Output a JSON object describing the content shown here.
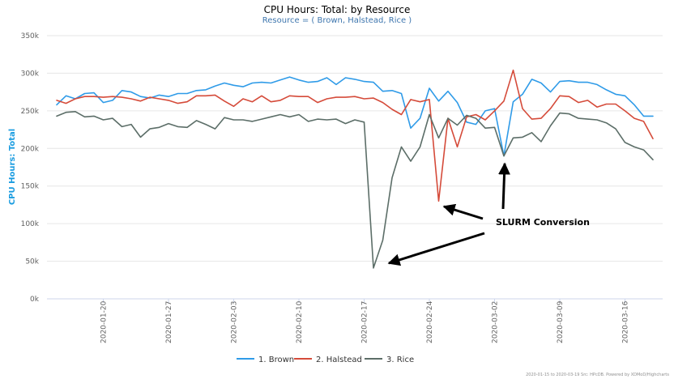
{
  "chart_data": {
    "type": "line",
    "title": "CPU Hours: Total: by Resource",
    "subtitle": "Resource = ( Brown, Halstead, Rice )",
    "ylabel": "CPU Hours: Total",
    "xlabel": "",
    "ylim": [
      0,
      350000
    ],
    "yticks": [
      0,
      50000,
      100000,
      150000,
      200000,
      250000,
      300000,
      350000
    ],
    "ytick_labels": [
      "0k",
      "50k",
      "100k",
      "150k",
      "200k",
      "250k",
      "300k",
      "350k"
    ],
    "xrange": [
      "2020-01-15",
      "2020-03-19"
    ],
    "xticks": [
      "2020-01-20",
      "2020-01-27",
      "2020-02-03",
      "2020-02-10",
      "2020-02-17",
      "2020-02-24",
      "2020-03-02",
      "2020-03-09",
      "2020-03-16"
    ],
    "grid": "horizontal",
    "legend_position": "bottom",
    "x": [
      "2020-01-15",
      "2020-01-16",
      "2020-01-17",
      "2020-01-18",
      "2020-01-19",
      "2020-01-20",
      "2020-01-21",
      "2020-01-22",
      "2020-01-23",
      "2020-01-24",
      "2020-01-25",
      "2020-01-26",
      "2020-01-27",
      "2020-01-28",
      "2020-01-29",
      "2020-01-30",
      "2020-01-31",
      "2020-02-01",
      "2020-02-02",
      "2020-02-03",
      "2020-02-04",
      "2020-02-05",
      "2020-02-06",
      "2020-02-07",
      "2020-02-08",
      "2020-02-09",
      "2020-02-10",
      "2020-02-11",
      "2020-02-12",
      "2020-02-13",
      "2020-02-14",
      "2020-02-15",
      "2020-02-16",
      "2020-02-17",
      "2020-02-18",
      "2020-02-19",
      "2020-02-20",
      "2020-02-21",
      "2020-02-22",
      "2020-02-23",
      "2020-02-24",
      "2020-02-25",
      "2020-02-26",
      "2020-02-27",
      "2020-02-28",
      "2020-02-29",
      "2020-03-01",
      "2020-03-02",
      "2020-03-03",
      "2020-03-04",
      "2020-03-05",
      "2020-03-06",
      "2020-03-07",
      "2020-03-08",
      "2020-03-09",
      "2020-03-10",
      "2020-03-11",
      "2020-03-12",
      "2020-03-13",
      "2020-03-14",
      "2020-03-15",
      "2020-03-16",
      "2020-03-17",
      "2020-03-18",
      "2020-03-19"
    ],
    "series": [
      {
        "name": "1. Brown",
        "color": "#2f9be8",
        "values": [
          258000,
          270000,
          266000,
          273000,
          274000,
          261000,
          264000,
          277000,
          275000,
          269000,
          267000,
          271000,
          269000,
          273000,
          273000,
          277000,
          278000,
          283000,
          287000,
          284000,
          282000,
          287000,
          288000,
          287000,
          291000,
          295000,
          291000,
          288000,
          289000,
          294000,
          285000,
          294000,
          292000,
          289000,
          288000,
          276000,
          277000,
          273000,
          227000,
          240000,
          280000,
          263000,
          276000,
          261000,
          235000,
          232000,
          250000,
          253000,
          190000,
          262000,
          272000,
          292000,
          287000,
          275000,
          289000,
          290000,
          288000,
          288000,
          285000,
          278000,
          272000,
          270000,
          258000,
          243000,
          243000
        ]
      },
      {
        "name": "2. Halstead",
        "color": "#d54b3a",
        "values": [
          264000,
          260000,
          266000,
          269000,
          269000,
          268000,
          269000,
          268000,
          266000,
          263000,
          268000,
          266000,
          264000,
          260000,
          262000,
          270000,
          270000,
          271000,
          263000,
          256000,
          266000,
          262000,
          270000,
          262000,
          264000,
          270000,
          269000,
          269000,
          261000,
          266000,
          268000,
          268000,
          269000,
          266000,
          267000,
          261000,
          252000,
          245000,
          265000,
          262000,
          265000,
          130000,
          240000,
          202000,
          242000,
          245000,
          238000,
          250000,
          263000,
          304000,
          253000,
          239000,
          240000,
          253000,
          270000,
          269000,
          261000,
          264000,
          255000,
          259000,
          259000,
          250000,
          240000,
          236000,
          213000
        ]
      },
      {
        "name": "3. Rice",
        "color": "#5c6e68",
        "values": [
          243000,
          248000,
          249000,
          242000,
          243000,
          238000,
          240000,
          229000,
          232000,
          215000,
          226000,
          228000,
          233000,
          229000,
          228000,
          237000,
          232000,
          226000,
          241000,
          238000,
          238000,
          236000,
          239000,
          242000,
          245000,
          242000,
          245000,
          236000,
          239000,
          238000,
          239000,
          233000,
          238000,
          235000,
          41000,
          78000,
          161000,
          202000,
          183000,
          202000,
          245000,
          214000,
          240000,
          231000,
          244000,
          240000,
          227000,
          228000,
          190000,
          214000,
          215000,
          221000,
          209000,
          230000,
          247000,
          246000,
          240000,
          239000,
          238000,
          234000,
          226000,
          208000,
          202000,
          198000,
          185000
        ]
      }
    ],
    "annotations": [
      {
        "text": "SLURM Conversion"
      }
    ],
    "credits": "2020-01-15 to 2020-03-19 Src: HPcDB. Powered by XDMoD/Highcharts"
  }
}
